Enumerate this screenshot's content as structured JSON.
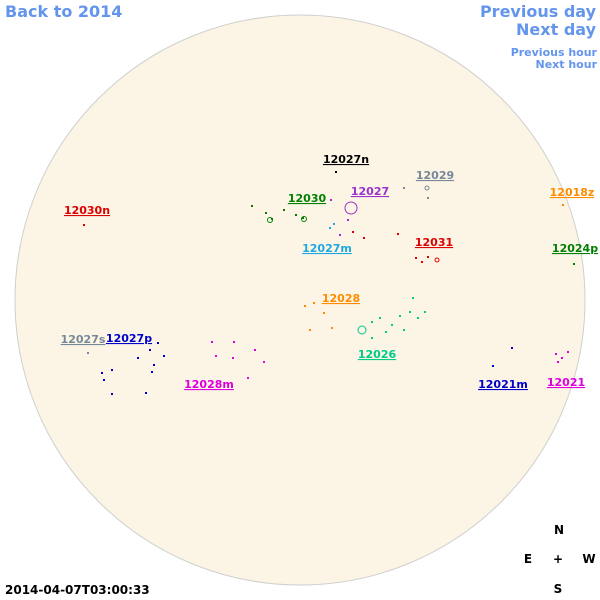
{
  "navigation": {
    "back": "Back to 2014",
    "previous_day": "Previous day",
    "next_day": "Next day",
    "previous_hour": "Previous hour",
    "next_hour": "Next hour"
  },
  "timestamp": "2014-04-07T03:00:33",
  "compass": {
    "north": "N",
    "east": "E",
    "center": "+",
    "west": "W",
    "south": "S"
  },
  "regions": [
    {
      "label": "12027n",
      "color": "#000000"
    },
    {
      "label": "12029",
      "color": "#778899"
    },
    {
      "label": "12027",
      "color": "#9932cc"
    },
    {
      "label": "12018z",
      "color": "#ff8c00"
    },
    {
      "label": "12030",
      "color": "#008000"
    },
    {
      "label": "12030n",
      "color": "#dd0000"
    },
    {
      "label": "12027m",
      "color": "#1ea8e0"
    },
    {
      "label": "12031",
      "color": "#dd0000"
    },
    {
      "label": "12024p",
      "color": "#008000"
    },
    {
      "label": "12028",
      "color": "#ff8c00"
    },
    {
      "label": "12026",
      "color": "#00cc88"
    },
    {
      "label": "12027s",
      "color": "#778899"
    },
    {
      "label": "12027p",
      "color": "#0000cd"
    },
    {
      "label": "12028m",
      "color": "#dd00dd"
    },
    {
      "label": "12021m",
      "color": "#0000cd"
    },
    {
      "label": "12021",
      "color": "#dd00dd"
    }
  ]
}
